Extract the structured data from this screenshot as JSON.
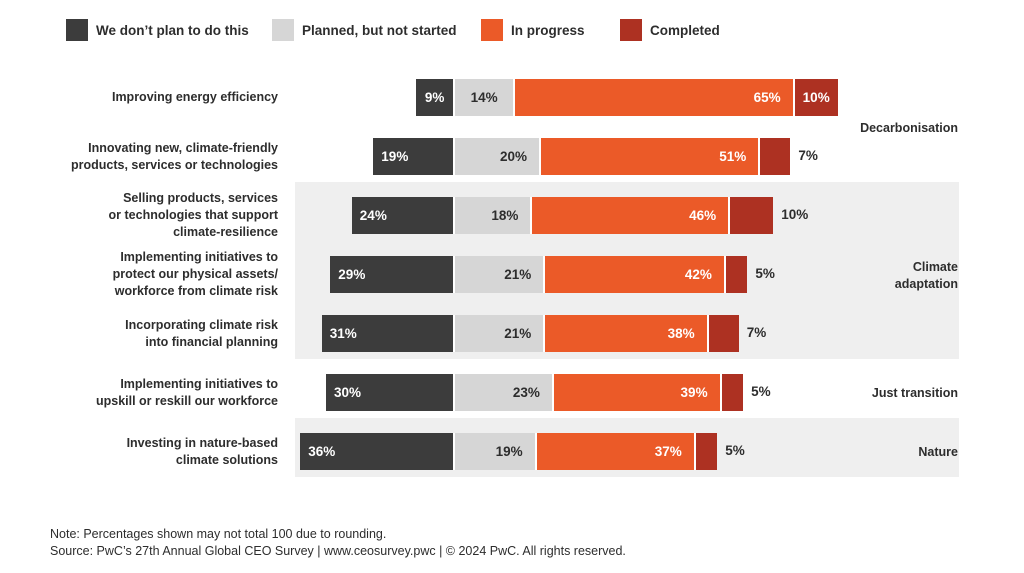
{
  "chart_data": {
    "type": "bar",
    "orientation": "horizontal-diverging-stacked",
    "legend": [
      {
        "key": "not_planned",
        "label": "We don’t plan to do this",
        "color": "#3c3c3c"
      },
      {
        "key": "planned",
        "label": "Planned, but not started",
        "color": "#d6d6d6"
      },
      {
        "key": "in_progress",
        "label": "In progress",
        "color": "#eb5a28"
      },
      {
        "key": "completed",
        "label": "Completed",
        "color": "#ad3122"
      }
    ],
    "categories": [
      {
        "label_lines": [
          "Improving energy efficiency"
        ],
        "values": {
          "not_planned": 9,
          "planned": 14,
          "in_progress": 65,
          "completed": 10
        }
      },
      {
        "label_lines": [
          "Innovating new, climate-friendly",
          "products, services or technologies"
        ],
        "values": {
          "not_planned": 19,
          "planned": 20,
          "in_progress": 51,
          "completed": 7
        }
      },
      {
        "label_lines": [
          "Selling products, services",
          "or technologies that support",
          "climate-resilience"
        ],
        "values": {
          "not_planned": 24,
          "planned": 18,
          "in_progress": 46,
          "completed": 10
        }
      },
      {
        "label_lines": [
          "Implementing initiatives to",
          "protect our physical assets/",
          "workforce from climate risk"
        ],
        "values": {
          "not_planned": 29,
          "planned": 21,
          "in_progress": 42,
          "completed": 5
        }
      },
      {
        "label_lines": [
          "Incorporating climate risk",
          "into financial planning"
        ],
        "values": {
          "not_planned": 31,
          "planned": 21,
          "in_progress": 38,
          "completed": 7
        }
      },
      {
        "label_lines": [
          "Implementing initiatives to",
          "upskill or reskill our workforce"
        ],
        "values": {
          "not_planned": 30,
          "planned": 23,
          "in_progress": 39,
          "completed": 5
        }
      },
      {
        "label_lines": [
          "Investing in nature-based",
          "climate solutions"
        ],
        "values": {
          "not_planned": 36,
          "planned": 19,
          "in_progress": 37,
          "completed": 5
        }
      }
    ],
    "groups": [
      {
        "label_lines": [
          "Decarbonisation"
        ],
        "rows": [
          0,
          1
        ],
        "shaded": false
      },
      {
        "label_lines": [
          "Climate",
          "adaptation"
        ],
        "rows": [
          2,
          3,
          4
        ],
        "shaded": true
      },
      {
        "label_lines": [
          "Just transition"
        ],
        "rows": [
          5
        ],
        "shaded": false
      },
      {
        "label_lines": [
          "Nature"
        ],
        "rows": [
          6
        ],
        "shaded": true
      }
    ],
    "value_suffix": "%",
    "title": "",
    "xlabel": "",
    "ylabel": ""
  },
  "notes": [
    "Note: Percentages shown may not total 100 due to rounding.",
    "Source: PwC’s 27th Annual Global CEO Survey  |  www.ceosurvey.pwc  |  © 2024 PwC. All rights reserved."
  ]
}
